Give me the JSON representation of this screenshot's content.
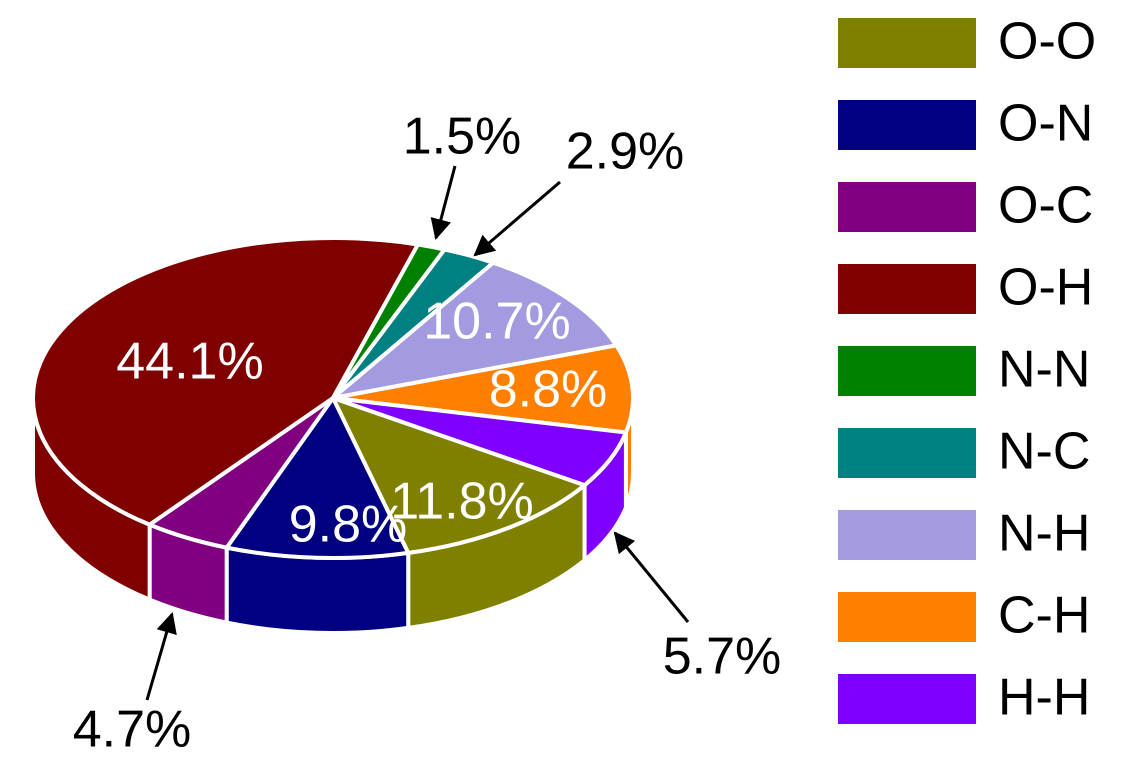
{
  "chart_data": {
    "type": "pie",
    "categories": [
      "O-O",
      "O-N",
      "O-C",
      "O-H",
      "N-N",
      "N-C",
      "N-H",
      "C-H",
      "H-H"
    ],
    "values": [
      11.8,
      9.8,
      4.7,
      44.1,
      1.5,
      2.9,
      10.7,
      8.8,
      5.7
    ],
    "value_labels": [
      "11.8%",
      "9.8%",
      "4.7%",
      "44.1%",
      "1.5%",
      "2.9%",
      "10.7%",
      "8.8%",
      "5.7%"
    ],
    "colors": [
      "#808000",
      "#000080",
      "#800080",
      "#800000",
      "#008000",
      "#008080",
      "#a39be0",
      "#ff8000",
      "#8000ff"
    ],
    "legend": "right"
  }
}
